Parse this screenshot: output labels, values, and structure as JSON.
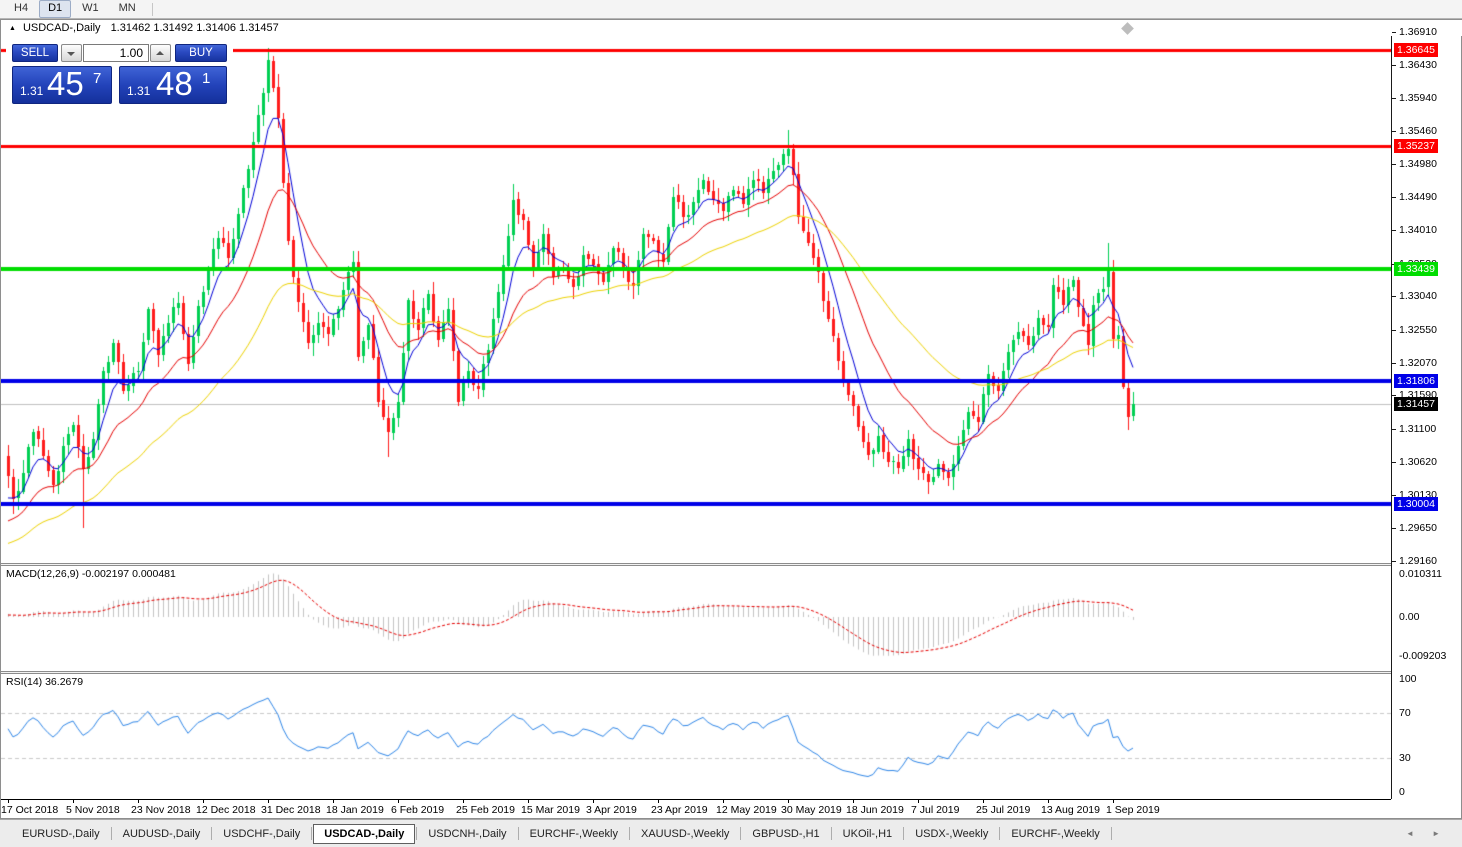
{
  "toolbar": {
    "timeframes": [
      "H4",
      "D1",
      "W1",
      "MN"
    ],
    "active": "D1"
  },
  "window": {
    "collapse_icon": "▲",
    "title": "USDCAD-,Daily",
    "quotes": "1.31462 1.31492 1.31406 1.31457"
  },
  "trade_panel": {
    "sell_label": "SELL",
    "buy_label": "BUY",
    "volume": "1.00",
    "sell_price": {
      "base": "1.31",
      "big": "45",
      "sup": "7"
    },
    "buy_price": {
      "base": "1.31",
      "big": "48",
      "sup": "1"
    }
  },
  "price_axis": {
    "ticks": [
      "1.36910",
      "1.36430",
      "1.35940",
      "1.35460",
      "1.34980",
      "1.34490",
      "1.34010",
      "1.33520",
      "1.33040",
      "1.32550",
      "1.32070",
      "1.31590",
      "1.31100",
      "1.30620",
      "1.30130",
      "1.29650",
      "1.29160"
    ],
    "tick_values": [
      1.3691,
      1.3643,
      1.3594,
      1.3546,
      1.3498,
      1.3449,
      1.3401,
      1.3352,
      1.3304,
      1.3255,
      1.3207,
      1.3159,
      1.311,
      1.3062,
      1.3013,
      1.2965,
      1.2916
    ]
  },
  "hlines": [
    {
      "price": 1.36645,
      "label": "1.36645",
      "color": "#fe0000",
      "thickness": 3
    },
    {
      "price": 1.35237,
      "label": "1.35237",
      "color": "#fe0000",
      "thickness": 3
    },
    {
      "price": 1.33439,
      "label": "1.33439",
      "color": "#00dd00",
      "thickness": 4
    },
    {
      "price": 1.31806,
      "label": "1.31806",
      "color": "#0000e8",
      "thickness": 4
    },
    {
      "price": 1.30004,
      "label": "1.30004",
      "color": "#0000e8",
      "thickness": 4
    }
  ],
  "current_price": {
    "value": 1.31457,
    "label": "1.31457",
    "line_color": "#c0c0c0",
    "badge_bg": "#000000"
  },
  "chart_data": {
    "type": "candlestick",
    "symbol": "USDCAD-",
    "timeframe": "Daily",
    "title": "USDCAD-,Daily",
    "price_range": [
      1.2916,
      1.3691
    ],
    "bars_total": 226,
    "first_open": 1.307,
    "wiggle": 0.0009,
    "bull_color": "#00cf53",
    "bear_color": "#ff1c1c",
    "anchors": [
      [
        0,
        1.304
      ],
      [
        1,
        1.3008
      ],
      [
        3,
        1.3046
      ],
      [
        5,
        1.3105
      ],
      [
        7,
        1.307
      ],
      [
        9,
        1.3028
      ],
      [
        11,
        1.3085
      ],
      [
        13,
        1.3115
      ],
      [
        15,
        1.3052
      ],
      [
        17,
        1.3095
      ],
      [
        19,
        1.3195
      ],
      [
        21,
        1.3235
      ],
      [
        23,
        1.3165
      ],
      [
        26,
        1.3195
      ],
      [
        28,
        1.3285
      ],
      [
        30,
        1.3218
      ],
      [
        32,
        1.3265
      ],
      [
        34,
        1.3295
      ],
      [
        36,
        1.3205
      ],
      [
        38,
        1.329
      ],
      [
        40,
        1.3345
      ],
      [
        42,
        1.339
      ],
      [
        44,
        1.336
      ],
      [
        46,
        1.3425
      ],
      [
        48,
        1.349
      ],
      [
        50,
        1.357
      ],
      [
        52,
        1.365
      ],
      [
        53,
        1.361
      ],
      [
        54,
        1.3565
      ],
      [
        55,
        1.347
      ],
      [
        56,
        1.3385
      ],
      [
        58,
        1.3295
      ],
      [
        60,
        1.3235
      ],
      [
        62,
        1.3265
      ],
      [
        64,
        1.325
      ],
      [
        66,
        1.3285
      ],
      [
        68,
        1.334
      ],
      [
        69,
        1.3355
      ],
      [
        70,
        1.3215
      ],
      [
        72,
        1.3262
      ],
      [
        74,
        1.315
      ],
      [
        76,
        1.3105
      ],
      [
        78,
        1.315
      ],
      [
        80,
        1.3298
      ],
      [
        82,
        1.3255
      ],
      [
        84,
        1.3308
      ],
      [
        86,
        1.324
      ],
      [
        88,
        1.3285
      ],
      [
        90,
        1.315
      ],
      [
        92,
        1.3195
      ],
      [
        94,
        1.3168
      ],
      [
        96,
        1.3225
      ],
      [
        98,
        1.331
      ],
      [
        100,
        1.3392
      ],
      [
        101,
        1.3445
      ],
      [
        103,
        1.3415
      ],
      [
        105,
        1.3345
      ],
      [
        107,
        1.3395
      ],
      [
        109,
        1.3332
      ],
      [
        111,
        1.3345
      ],
      [
        113,
        1.3318
      ],
      [
        115,
        1.3365
      ],
      [
        117,
        1.335
      ],
      [
        119,
        1.3325
      ],
      [
        121,
        1.3375
      ],
      [
        123,
        1.3345
      ],
      [
        125,
        1.3318
      ],
      [
        127,
        1.3395
      ],
      [
        129,
        1.3385
      ],
      [
        131,
        1.3355
      ],
      [
        133,
        1.345
      ],
      [
        135,
        1.342
      ],
      [
        137,
        1.3442
      ],
      [
        139,
        1.3475
      ],
      [
        141,
        1.3445
      ],
      [
        143,
        1.3428
      ],
      [
        145,
        1.346
      ],
      [
        147,
        1.3438
      ],
      [
        149,
        1.3475
      ],
      [
        151,
        1.3455
      ],
      [
        153,
        1.3488
      ],
      [
        155,
        1.3512
      ],
      [
        156,
        1.352
      ],
      [
        157,
        1.3482
      ],
      [
        158,
        1.342
      ],
      [
        160,
        1.3382
      ],
      [
        162,
        1.334
      ],
      [
        164,
        1.3272
      ],
      [
        166,
        1.321
      ],
      [
        168,
        1.316
      ],
      [
        170,
        1.3112
      ],
      [
        172,
        1.3072
      ],
      [
        174,
        1.31
      ],
      [
        176,
        1.3062
      ],
      [
        178,
        1.3052
      ],
      [
        180,
        1.3095
      ],
      [
        182,
        1.3052
      ],
      [
        184,
        1.3032
      ],
      [
        186,
        1.3058
      ],
      [
        188,
        1.3038
      ],
      [
        190,
        1.3085
      ],
      [
        192,
        1.3135
      ],
      [
        194,
        1.312
      ],
      [
        196,
        1.319
      ],
      [
        198,
        1.3165
      ],
      [
        200,
        1.3222
      ],
      [
        202,
        1.3252
      ],
      [
        204,
        1.3232
      ],
      [
        206,
        1.3272
      ],
      [
        208,
        1.3258
      ],
      [
        209,
        1.332
      ],
      [
        211,
        1.3292
      ],
      [
        213,
        1.3328
      ],
      [
        215,
        1.3262
      ],
      [
        216,
        1.3232
      ],
      [
        217,
        1.3292
      ],
      [
        219,
        1.3315
      ],
      [
        220,
        1.3342
      ],
      [
        221,
        1.3242
      ],
      [
        222,
        1.3248
      ],
      [
        223,
        1.3172
      ],
      [
        224,
        1.3128
      ],
      [
        225,
        1.31457
      ]
    ],
    "forced_wicks": [
      {
        "i": 1,
        "low": 1.2985
      },
      {
        "i": 15,
        "low": 1.2965
      },
      {
        "i": 52,
        "high": 1.36645
      },
      {
        "i": 76,
        "low": 1.3068
      },
      {
        "i": 101,
        "high": 1.3468
      },
      {
        "i": 156,
        "high": 1.3548
      },
      {
        "i": 184,
        "low": 1.3015
      },
      {
        "i": 220,
        "high": 1.33825
      },
      {
        "i": 224,
        "low": 1.3108
      }
    ],
    "moving_averages": [
      {
        "name": "fast-ma",
        "color": "#0000d8",
        "alpha": 0.26,
        "seed": 1.2998
      },
      {
        "name": "medium-ma",
        "color": "#e60000",
        "alpha": 0.1,
        "seed": 1.2968
      },
      {
        "name": "slow-ma",
        "color": "#edd200",
        "alpha": 0.042,
        "seed": 1.2938
      }
    ],
    "x_labels": [
      {
        "text": "17 Oct 2018",
        "i": 0
      },
      {
        "text": "5 Nov 2018",
        "i": 13
      },
      {
        "text": "23 Nov 2018",
        "i": 26
      },
      {
        "text": "12 Dec 2018",
        "i": 39
      },
      {
        "text": "31 Dec 2018",
        "i": 52
      },
      {
        "text": "18 Jan 2019",
        "i": 65
      },
      {
        "text": "6 Feb 2019",
        "i": 78
      },
      {
        "text": "25 Feb 2019",
        "i": 91
      },
      {
        "text": "15 Mar 2019",
        "i": 104
      },
      {
        "text": "3 Apr 2019",
        "i": 117
      },
      {
        "text": "23 Apr 2019",
        "i": 130
      },
      {
        "text": "12 May 2019",
        "i": 143
      },
      {
        "text": "30 May 2019",
        "i": 156
      },
      {
        "text": "18 Jun 2019",
        "i": 169
      },
      {
        "text": "7 Jul 2019",
        "i": 182
      },
      {
        "text": "25 Jul 2019",
        "i": 195
      },
      {
        "text": "13 Aug 2019",
        "i": 208
      },
      {
        "text": "1 Sep 2019",
        "i": 221
      }
    ]
  },
  "macd": {
    "label": "MACD(12,26,9) -0.002197 0.000481",
    "params": {
      "fast": 12,
      "slow": 26,
      "signal": 9
    },
    "current_macd": -0.002197,
    "current_signal": 0.000481,
    "axis_labels": [
      {
        "v": 0.010311,
        "text": "0.010311"
      },
      {
        "v": 0,
        "text": "0.00"
      },
      {
        "v": -0.009203,
        "text": "-0.009203"
      }
    ],
    "hist_color": "#c4c4c4",
    "signal_color": "#e60000"
  },
  "rsi": {
    "label": "RSI(14) 36.2679",
    "period": 14,
    "current": 36.2679,
    "levels": [
      70,
      30
    ],
    "axis_labels": [
      {
        "v": 100,
        "text": "100"
      },
      {
        "v": 70,
        "text": "70"
      },
      {
        "v": 30,
        "text": "30"
      },
      {
        "v": 0,
        "text": "0"
      }
    ],
    "line_color": "#2e86e8",
    "level_color": "#c9c9c9"
  },
  "tabs": {
    "items": [
      "EURUSD-,Daily",
      "AUDUSD-,Daily",
      "USDCHF-,Daily",
      "USDCAD-,Daily",
      "USDCNH-,Daily",
      "EURCHF-,Weekly",
      "XAUUSD-,Weekly",
      "GBPUSD-,H1",
      "UKOil-,H1",
      "USDX-,Weekly",
      "EURCHF-,Weekly"
    ],
    "active_index": 3,
    "scroll_left_icon": "◄",
    "scroll_right_icon": "►"
  }
}
